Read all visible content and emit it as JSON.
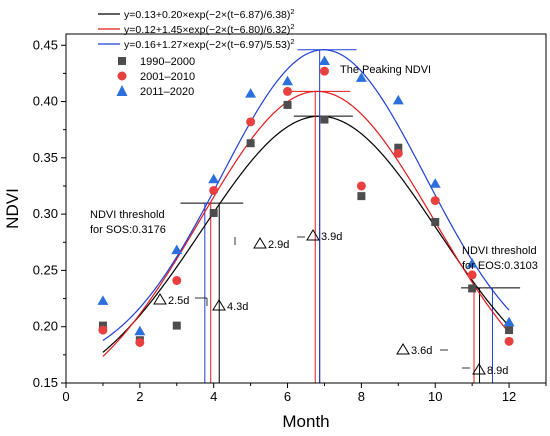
{
  "chart_data": {
    "type": "scatter",
    "xlabel": "Month",
    "ylabel": "NDVI",
    "xlim": [
      0,
      13
    ],
    "ylim": [
      0.15,
      0.46
    ],
    "x_ticks": [
      0,
      2,
      4,
      6,
      8,
      10,
      12
    ],
    "y_ticks": [
      0.15,
      0.2,
      0.25,
      0.3,
      0.35,
      0.4,
      0.45
    ],
    "legend_position": "top-left",
    "fits": [
      {
        "label": "y=0.13+0.20×exp(−2×(t−6.87)/6.38)",
        "sup": "2",
        "a": 0.13,
        "b": 0.2,
        "mu": 6.87,
        "w": 6.38,
        "color": "#000000"
      },
      {
        "label": "y=0.12+1.45×exp(−2×(t−6.80)/6.32)",
        "sup": "2",
        "a": 0.12,
        "b": 1.45,
        "mu": 6.8,
        "w": 6.32,
        "color": "#e41a1c"
      },
      {
        "label": "y=0.16+1.27×exp(−2×(t−6.97)/5.53)",
        "sup": "2",
        "a": 0.16,
        "b": 1.27,
        "mu": 6.97,
        "w": 5.53,
        "color": "#1f3fd6"
      }
    ],
    "series": [
      {
        "name": "1990–2000",
        "marker": "square",
        "color": "#4d4d4d",
        "x": [
          1,
          2,
          3,
          4,
          5,
          6,
          7,
          8,
          9,
          10,
          11,
          12
        ],
        "y": [
          0.201,
          0.188,
          0.201,
          0.301,
          0.363,
          0.397,
          0.384,
          0.316,
          0.359,
          0.293,
          0.234,
          0.197
        ]
      },
      {
        "name": "2001–2010",
        "marker": "circle",
        "color": "#e84040",
        "x": [
          1,
          2,
          3,
          4,
          5,
          6,
          7,
          8,
          9,
          10,
          11,
          12
        ],
        "y": [
          0.197,
          0.186,
          0.241,
          0.321,
          0.382,
          0.409,
          0.427,
          0.325,
          0.354,
          0.312,
          0.246,
          0.187
        ]
      },
      {
        "name": "2011–2020",
        "marker": "triangle",
        "color": "#2a6fdb",
        "x": [
          1,
          2,
          3,
          4,
          5,
          6,
          7,
          8,
          9,
          10,
          11,
          12
        ],
        "y": [
          0.223,
          0.196,
          0.268,
          0.331,
          0.407,
          0.418,
          0.436,
          0.421,
          0.401,
          0.327,
          0.256,
          0.204
        ]
      }
    ],
    "annotations": {
      "peak": "The Peaking NDVI",
      "sos_line1": "NDVI threshold",
      "sos_line2": "for SOS:0.3176",
      "eos_line1": "NDVI threshold",
      "eos_line2": "for EOS:0.3103",
      "d_sos_a": "2.5d",
      "d_sos_b": "4.3d",
      "d_peak_a": "2.9d",
      "d_peak_b": "3.9d",
      "d_eos_a": "3.6d",
      "d_eos_b": "8.9d"
    }
  }
}
